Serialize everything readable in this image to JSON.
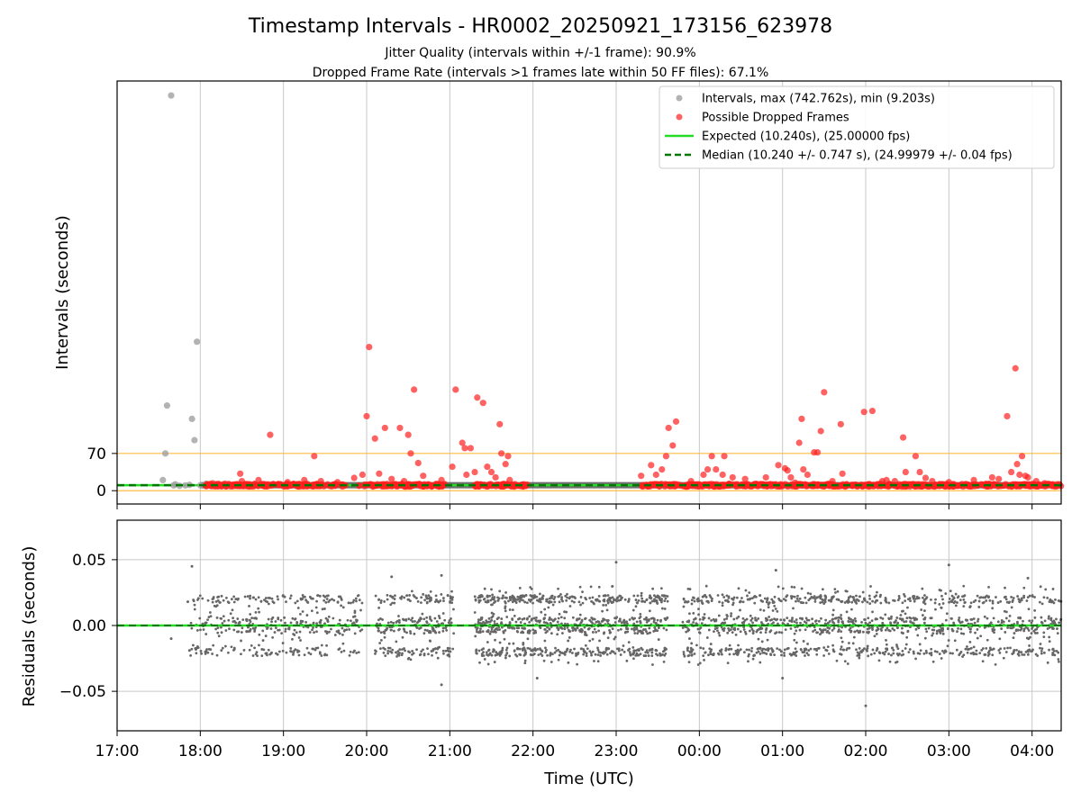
{
  "figure": {
    "title": "Timestamp Intervals - HR0002_20250921_173156_623978",
    "subtitle_1": "Jitter Quality (intervals within +/-1 frame): 90.9%",
    "subtitle_2": "Dropped Frame Rate (intervals >1 frames late within 50 FF files): 67.1%"
  },
  "colors": {
    "intervals": "#a0a0a0",
    "dropped": "#ff2020",
    "expected": "#22dd22",
    "median": "#007700",
    "threshold": "#ffbb44",
    "residuals": "#666666",
    "grid": "#c8c8c8"
  },
  "chart_data": [
    {
      "type": "scatter",
      "panel": "intervals",
      "ylabel": "Intervals (seconds)",
      "xlim_hours": [
        17.0,
        28.35
      ],
      "ylim": [
        -25,
        770
      ],
      "yticks": [
        0,
        70
      ],
      "ytick_labels": [
        "0",
        "70"
      ],
      "threshold_lines": [
        0.0,
        70.0
      ],
      "expected_value": 10.24,
      "median_value": 10.24,
      "legend": [
        {
          "key": "intervals",
          "label": "Intervals, max (742.762s), min (9.203s)"
        },
        {
          "key": "dropped",
          "label": "Possible Dropped Frames"
        },
        {
          "key": "expected",
          "label": "Expected (10.240s), (25.00000 fps)"
        },
        {
          "key": "median",
          "label": "Median (10.240 +/- 0.747 s), (24.99979 +/- 0.04 fps)"
        }
      ],
      "legend_location": "top-right",
      "series": [
        {
          "name": "Intervals",
          "points": [
            [
              17.55,
              20
            ],
            [
              17.58,
              70
            ],
            [
              17.6,
              160
            ],
            [
              17.65,
              742.762
            ],
            [
              17.68,
              10
            ],
            [
              17.75,
              9.203
            ],
            [
              17.87,
              11
            ],
            [
              17.9,
              135
            ],
            [
              17.93,
              95
            ],
            [
              17.96,
              280
            ],
            [
              18.0,
              10
            ],
            [
              18.07,
              13
            ],
            [
              17.7,
              12
            ],
            [
              17.82,
              10
            ]
          ],
          "band": {
            "range": [
              18.0,
              28.35
            ],
            "value": 10.24
          }
        },
        {
          "name": "Possible Dropped Frames",
          "points": [
            [
              18.08,
              12
            ],
            [
              18.15,
              14
            ],
            [
              18.3,
              13
            ],
            [
              18.48,
              32
            ],
            [
              18.5,
              18
            ],
            [
              18.7,
              20
            ],
            [
              18.84,
              105
            ],
            [
              19.05,
              16
            ],
            [
              19.25,
              20
            ],
            [
              19.37,
              65
            ],
            [
              19.45,
              18
            ],
            [
              19.65,
              16
            ],
            [
              19.85,
              24
            ],
            [
              19.95,
              30
            ],
            [
              20.0,
              140
            ],
            [
              20.03,
              270
            ],
            [
              20.1,
              98
            ],
            [
              20.15,
              32
            ],
            [
              20.22,
              118
            ],
            [
              20.3,
              22
            ],
            [
              20.4,
              118
            ],
            [
              20.45,
              18
            ],
            [
              20.5,
              105
            ],
            [
              20.53,
              70
            ],
            [
              20.57,
              190
            ],
            [
              20.62,
              52
            ],
            [
              20.68,
              28
            ],
            [
              20.9,
              20
            ],
            [
              21.03,
              45
            ],
            [
              21.07,
              190
            ],
            [
              21.15,
              90
            ],
            [
              21.18,
              80
            ],
            [
              21.2,
              30
            ],
            [
              21.25,
              80
            ],
            [
              21.3,
              35
            ],
            [
              21.33,
              175
            ],
            [
              21.4,
              165
            ],
            [
              21.45,
              45
            ],
            [
              21.5,
              35
            ],
            [
              21.55,
              25
            ],
            [
              21.6,
              125
            ],
            [
              21.62,
              70
            ],
            [
              21.67,
              50
            ],
            [
              21.7,
              65
            ],
            [
              21.72,
              20
            ],
            [
              23.3,
              28
            ],
            [
              23.42,
              48
            ],
            [
              23.48,
              30
            ],
            [
              23.55,
              40
            ],
            [
              23.6,
              65
            ],
            [
              23.63,
              118
            ],
            [
              23.68,
              85
            ],
            [
              23.72,
              130
            ],
            [
              23.9,
              18
            ],
            [
              24.05,
              30
            ],
            [
              24.1,
              40
            ],
            [
              24.15,
              65
            ],
            [
              24.2,
              40
            ],
            [
              24.28,
              30
            ],
            [
              24.3,
              65
            ],
            [
              24.4,
              25
            ],
            [
              24.55,
              22
            ],
            [
              24.8,
              25
            ],
            [
              24.95,
              48
            ],
            [
              25.03,
              42
            ],
            [
              25.06,
              38
            ],
            [
              25.1,
              25
            ],
            [
              25.15,
              15
            ],
            [
              25.2,
              90
            ],
            [
              25.23,
              135
            ],
            [
              25.25,
              40
            ],
            [
              25.3,
              30
            ],
            [
              25.38,
              72
            ],
            [
              25.42,
              72
            ],
            [
              25.46,
              112
            ],
            [
              25.5,
              185
            ],
            [
              25.6,
              18
            ],
            [
              25.7,
              125
            ],
            [
              25.72,
              32
            ],
            [
              25.98,
              148
            ],
            [
              26.08,
              150
            ],
            [
              26.2,
              18
            ],
            [
              26.25,
              20
            ],
            [
              26.35,
              18
            ],
            [
              26.45,
              100
            ],
            [
              26.48,
              35
            ],
            [
              26.6,
              65
            ],
            [
              26.65,
              35
            ],
            [
              26.72,
              24
            ],
            [
              26.8,
              18
            ],
            [
              27.0,
              16
            ],
            [
              27.3,
              20
            ],
            [
              27.52,
              25
            ],
            [
              27.6,
              22
            ],
            [
              27.7,
              140
            ],
            [
              27.75,
              35
            ],
            [
              27.8,
              230
            ],
            [
              27.85,
              30
            ],
            [
              27.92,
              28
            ],
            [
              27.95,
              25
            ],
            [
              28.05,
              18
            ],
            [
              28.15,
              14
            ],
            [
              28.2,
              12
            ],
            [
              28.3,
              12
            ],
            [
              27.88,
              65
            ],
            [
              27.82,
              50
            ]
          ],
          "dense_cluster_ranges": [
            [
              18.05,
              19.75
            ],
            [
              19.9,
              20.95
            ],
            [
              21.3,
              21.95
            ],
            [
              23.3,
              28.35
            ]
          ],
          "dense_cluster_value": 10.24
        }
      ]
    },
    {
      "type": "scatter",
      "panel": "residuals",
      "ylabel": "Residuals (seconds)",
      "xlabel": "Time (UTC)",
      "xlim_hours": [
        17.0,
        28.35
      ],
      "ylim": [
        -0.08,
        0.08
      ],
      "yticks": [
        0.05,
        0.0,
        -0.05
      ],
      "ytick_labels": [
        "0.05",
        "0.00",
        "−0.05"
      ],
      "xticks_hours": [
        17,
        18,
        19,
        20,
        21,
        22,
        23,
        24,
        25,
        26,
        27,
        28
      ],
      "xtick_labels": [
        "17:00",
        "18:00",
        "19:00",
        "20:00",
        "21:00",
        "22:00",
        "23:00",
        "00:00",
        "01:00",
        "02:00",
        "03:00",
        "04:00"
      ],
      "zero_line_value": 0.0,
      "series": [
        {
          "name": "Residuals",
          "segments": [
            {
              "range": [
                17.88,
                19.95
              ],
              "spread": 0.022,
              "count": 420
            },
            {
              "range": [
                20.1,
                21.05
              ],
              "spread": 0.028,
              "count": 260
            },
            {
              "range": [
                21.3,
                23.62
              ],
              "spread": 0.03,
              "count": 900
            },
            {
              "range": [
                23.8,
                28.35
              ],
              "spread": 0.03,
              "count": 1300
            }
          ],
          "outliers": [
            [
              17.85,
              0.018
            ],
            [
              17.9,
              0.045
            ],
            [
              17.87,
              -0.019
            ],
            [
              17.65,
              -0.01
            ],
            [
              20.3,
              0.037
            ],
            [
              20.9,
              0.038
            ],
            [
              20.9,
              -0.045
            ],
            [
              23.0,
              0.048
            ],
            [
              22.05,
              -0.04
            ],
            [
              25.0,
              -0.04
            ],
            [
              26.0,
              -0.061
            ],
            [
              27.0,
              0.046
            ],
            [
              27.95,
              0.036
            ],
            [
              24.92,
              0.042
            ]
          ]
        }
      ]
    }
  ]
}
